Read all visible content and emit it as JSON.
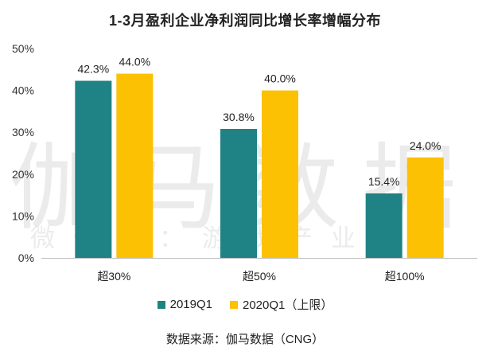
{
  "title": "1-3月盈利企业净利润同比增长率增幅分布",
  "watermark": {
    "main": "伽马数据",
    "sub": "微信号：游戏产业报告"
  },
  "source": "数据来源：伽马数据（CNG）",
  "colors": {
    "s2019": "#1f8285",
    "s2020": "#fbc102"
  },
  "chart_data": {
    "type": "bar",
    "categories": [
      "超30%",
      "超50%",
      "超100%"
    ],
    "series": [
      {
        "name": "2019Q1",
        "values": [
          42.3,
          30.8,
          15.4
        ],
        "labels": [
          "42.3%",
          "30.8%",
          "15.4%"
        ]
      },
      {
        "name": "2020Q1（上限）",
        "values": [
          44.0,
          40.0,
          24.0
        ],
        "labels": [
          "44.0%",
          "40.0%",
          "24.0%"
        ]
      }
    ],
    "yticks": [
      "0%",
      "10%",
      "20%",
      "30%",
      "40%",
      "50%"
    ],
    "ylim": [
      0,
      50
    ],
    "grid": false,
    "legend": "bottom"
  }
}
